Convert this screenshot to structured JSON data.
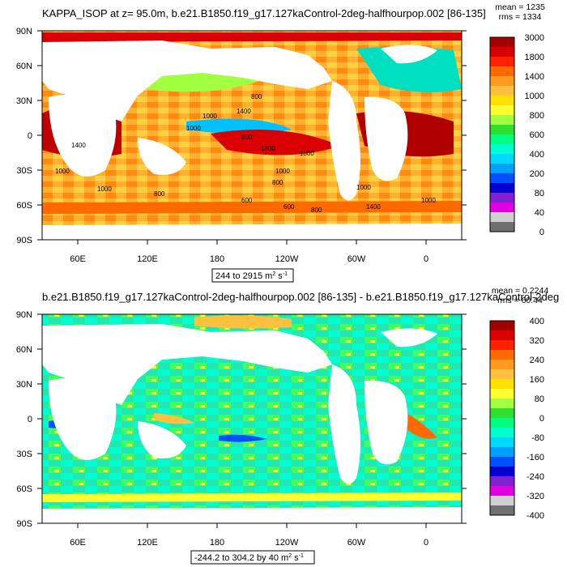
{
  "panels": [
    {
      "title": "KAPPA_ISOP at z=  95.0m, b.e21.B1850.f19_g17.127kaControl-2deg-halfhourpop.002 [86-135]",
      "mean": "mean = 1235",
      "rms": "rms = 1334",
      "range_label": "244 to 2915 m",
      "unit_tail": " s",
      "lat_ticks": [
        "90N",
        "60N",
        "30N",
        "0",
        "30S",
        "60S",
        "90S"
      ],
      "lon_ticks": [
        "60E",
        "120E",
        "180",
        "120W",
        "60W",
        "0"
      ],
      "colorbar": {
        "labels": [
          "3000",
          "1800",
          "1400",
          "1000",
          "800",
          "600",
          "400",
          "200",
          "80",
          "40",
          "0"
        ],
        "colors": [
          "#a50000",
          "#d80000",
          "#ff2000",
          "#ff6a00",
          "#ff9a20",
          "#ffc040",
          "#ffe000",
          "#ffff30",
          "#a0ff40",
          "#30e030",
          "#00ff80",
          "#00ffd0",
          "#00d8ff",
          "#00a0ff",
          "#0050ff",
          "#0000d0",
          "#8020d0",
          "#e000e0",
          "#d0d0d0",
          "#707070"
        ]
      },
      "contour_labels": [
        "800",
        "1000",
        "1400",
        "1000",
        "1800",
        "800",
        "1400",
        "1000",
        "1000",
        "600",
        "800",
        "1800",
        "1000",
        "800",
        "600",
        "800",
        "1000",
        "1000",
        "1400"
      ]
    },
    {
      "title": "b.e21.B1850.f19_g17.127kaControl-2deg-halfhourpop.002 [86-135] - b.e21.B1850.f19_g17.127kaControl-2deg",
      "mean": "mean = 0.2244",
      "rms": "rms = 60.44",
      "range_label": "-244.2 to 304.2 by 40 m",
      "unit_tail": " s",
      "lat_ticks": [
        "90N",
        "60N",
        "30N",
        "0",
        "30S",
        "60S",
        "90S"
      ],
      "lon_ticks": [
        "60E",
        "120E",
        "180",
        "120W",
        "60W",
        "0"
      ],
      "colorbar": {
        "labels": [
          "400",
          "320",
          "240",
          "160",
          "80",
          "0",
          "-80",
          "-160",
          "-240",
          "-320",
          "-400"
        ],
        "colors": [
          "#a50000",
          "#d80000",
          "#ff2000",
          "#ff6a00",
          "#ff9a20",
          "#ffc040",
          "#ffe000",
          "#ffff30",
          "#a0ff40",
          "#30e030",
          "#00ff80",
          "#00ffd0",
          "#00d8ff",
          "#00a0ff",
          "#0050ff",
          "#0000d0",
          "#8020d0",
          "#e000e0",
          "#d0d0d0",
          "#707070"
        ]
      }
    }
  ]
}
